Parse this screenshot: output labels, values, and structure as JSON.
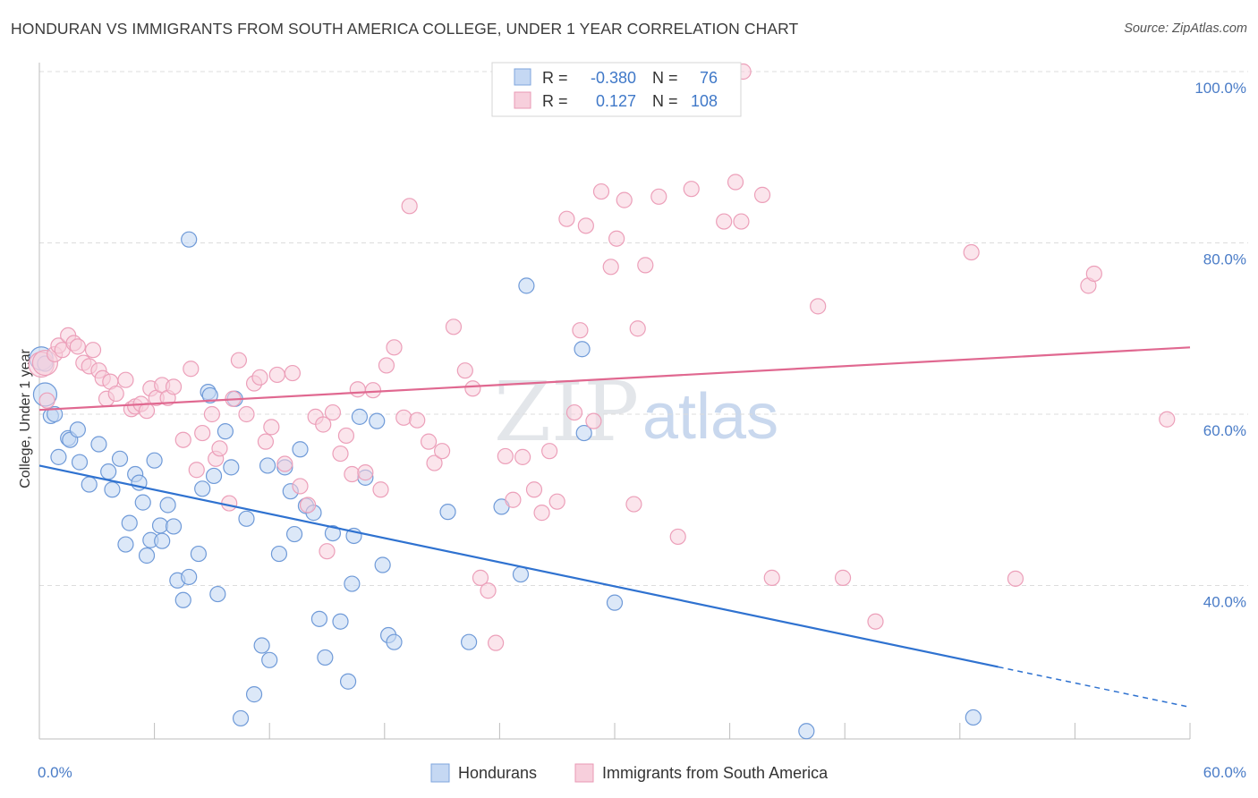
{
  "header": {
    "title": "HONDURAN VS IMMIGRANTS FROM SOUTH AMERICA COLLEGE, UNDER 1 YEAR CORRELATION CHART",
    "source": "Source: ZipAtlas.com"
  },
  "watermark": {
    "zip": "ZIP",
    "atlas": "atlas"
  },
  "chart_data": {
    "type": "scatter",
    "title": "HONDURAN VS IMMIGRANTS FROM SOUTH AMERICA COLLEGE, UNDER 1 YEAR CORRELATION CHART",
    "xlabel": "",
    "ylabel": "College, Under 1 year",
    "xlim": [
      0,
      60
    ],
    "ylim": [
      22,
      101
    ],
    "x_tick_labels": [
      "0.0%",
      "60.0%"
    ],
    "y_tick_labels": [
      "40.0%",
      "60.0%",
      "80.0%",
      "100.0%"
    ],
    "y_tick_values": [
      40,
      60,
      80,
      100
    ],
    "grid": true,
    "legend_position": "top-center",
    "colors": {
      "hondurans": "#8db4e6",
      "hondurans_line": "#2f72d0",
      "immigrants": "#f2a8c0",
      "immigrants_line": "#e06890",
      "tick_label": "#4a7cc7"
    },
    "legend": {
      "rows": [
        {
          "r_label": "R =",
          "r_value": "-0.380",
          "n_label": "N =",
          "n_value": "76"
        },
        {
          "r_label": "R =",
          "r_value": "0.127",
          "n_label": "N =",
          "n_value": "108"
        }
      ]
    },
    "series": [
      {
        "name": "Hondurans",
        "trend": {
          "x0": 0,
          "y0": 54,
          "x1": 50,
          "y1": 30.5,
          "dashed_to_x": 60,
          "dashed_to_y": 25.8
        },
        "points": [
          [
            0.1,
            66.5
          ],
          [
            0.3,
            62.3
          ],
          [
            0.6,
            59.8
          ],
          [
            0.8,
            60.0
          ],
          [
            1.0,
            55.0
          ],
          [
            1.5,
            57.2
          ],
          [
            1.6,
            57.0
          ],
          [
            2.0,
            58.2
          ],
          [
            2.1,
            54.4
          ],
          [
            2.6,
            51.8
          ],
          [
            3.1,
            56.5
          ],
          [
            3.6,
            53.3
          ],
          [
            3.8,
            51.2
          ],
          [
            4.2,
            54.8
          ],
          [
            4.5,
            44.8
          ],
          [
            4.7,
            47.3
          ],
          [
            5.0,
            53.0
          ],
          [
            5.2,
            52.0
          ],
          [
            5.4,
            49.7
          ],
          [
            5.6,
            43.5
          ],
          [
            5.8,
            45.3
          ],
          [
            6.0,
            54.6
          ],
          [
            6.3,
            47.0
          ],
          [
            6.4,
            45.2
          ],
          [
            6.7,
            49.4
          ],
          [
            7.0,
            46.9
          ],
          [
            7.2,
            40.6
          ],
          [
            7.5,
            38.3
          ],
          [
            7.8,
            41.0
          ],
          [
            8.3,
            43.7
          ],
          [
            8.5,
            51.3
          ],
          [
            8.8,
            62.6
          ],
          [
            9.1,
            52.8
          ],
          [
            9.3,
            39.0
          ],
          [
            9.7,
            58.0
          ],
          [
            10.0,
            53.8
          ],
          [
            10.2,
            61.8
          ],
          [
            10.5,
            24.5
          ],
          [
            10.8,
            47.8
          ],
          [
            11.2,
            27.3
          ],
          [
            11.6,
            33.0
          ],
          [
            11.9,
            54.0
          ],
          [
            12.0,
            31.3
          ],
          [
            12.5,
            43.7
          ],
          [
            12.8,
            53.8
          ],
          [
            13.1,
            51.0
          ],
          [
            13.3,
            46.0
          ],
          [
            13.6,
            55.9
          ],
          [
            13.9,
            49.3
          ],
          [
            14.3,
            48.5
          ],
          [
            14.6,
            36.1
          ],
          [
            14.9,
            31.6
          ],
          [
            15.3,
            46.1
          ],
          [
            15.7,
            35.8
          ],
          [
            16.1,
            28.8
          ],
          [
            16.3,
            40.2
          ],
          [
            16.4,
            45.8
          ],
          [
            16.7,
            59.7
          ],
          [
            17.0,
            52.6
          ],
          [
            17.6,
            59.2
          ],
          [
            17.9,
            42.4
          ],
          [
            18.2,
            34.2
          ],
          [
            18.5,
            33.4
          ],
          [
            7.8,
            80.4
          ],
          [
            21.3,
            48.6
          ],
          [
            22.4,
            33.4
          ],
          [
            24.1,
            49.2
          ],
          [
            25.1,
            41.3
          ],
          [
            25.4,
            75.0
          ],
          [
            28.3,
            67.6
          ],
          [
            28.4,
            57.8
          ],
          [
            30.0,
            38.0
          ],
          [
            40.0,
            23.0
          ],
          [
            48.7,
            24.6
          ],
          [
            8.9,
            62.2
          ],
          [
            0.3,
            65.9
          ]
        ]
      },
      {
        "name": "Immigrants from South America",
        "trend": {
          "x0": 0,
          "y0": 60.5,
          "x1": 60,
          "y1": 67.8
        },
        "points": [
          [
            0.1,
            65.8
          ],
          [
            0.3,
            66.0
          ],
          [
            0.4,
            61.6
          ],
          [
            0.8,
            67.0
          ],
          [
            1.0,
            68.0
          ],
          [
            1.2,
            67.5
          ],
          [
            1.5,
            69.2
          ],
          [
            1.8,
            68.3
          ],
          [
            2.0,
            67.9
          ],
          [
            2.3,
            66.0
          ],
          [
            2.6,
            65.6
          ],
          [
            2.8,
            67.5
          ],
          [
            3.1,
            65.1
          ],
          [
            3.3,
            64.2
          ],
          [
            3.5,
            61.8
          ],
          [
            3.7,
            63.8
          ],
          [
            4.0,
            62.4
          ],
          [
            4.5,
            64.0
          ],
          [
            4.8,
            60.6
          ],
          [
            5.0,
            60.9
          ],
          [
            5.3,
            61.2
          ],
          [
            5.6,
            60.4
          ],
          [
            5.8,
            63.0
          ],
          [
            6.1,
            61.9
          ],
          [
            6.4,
            63.4
          ],
          [
            6.7,
            61.9
          ],
          [
            7.0,
            63.2
          ],
          [
            7.5,
            57.0
          ],
          [
            7.9,
            65.3
          ],
          [
            8.2,
            53.5
          ],
          [
            8.5,
            57.8
          ],
          [
            9.0,
            60.0
          ],
          [
            9.2,
            54.8
          ],
          [
            9.4,
            56.0
          ],
          [
            9.9,
            49.6
          ],
          [
            10.1,
            61.8
          ],
          [
            10.4,
            66.3
          ],
          [
            10.8,
            60.0
          ],
          [
            11.2,
            63.6
          ],
          [
            11.5,
            64.3
          ],
          [
            11.8,
            56.8
          ],
          [
            12.1,
            58.5
          ],
          [
            12.4,
            64.6
          ],
          [
            12.8,
            54.2
          ],
          [
            13.2,
            64.8
          ],
          [
            13.6,
            51.6
          ],
          [
            14.0,
            49.4
          ],
          [
            14.4,
            59.7
          ],
          [
            14.8,
            58.8
          ],
          [
            15.0,
            44.0
          ],
          [
            15.3,
            60.2
          ],
          [
            15.7,
            55.4
          ],
          [
            16.0,
            57.5
          ],
          [
            16.3,
            53.0
          ],
          [
            16.6,
            62.9
          ],
          [
            17.0,
            53.2
          ],
          [
            17.4,
            62.8
          ],
          [
            17.8,
            51.2
          ],
          [
            18.1,
            65.7
          ],
          [
            18.5,
            67.8
          ],
          [
            19.0,
            59.6
          ],
          [
            19.3,
            84.3
          ],
          [
            19.7,
            59.3
          ],
          [
            20.3,
            56.8
          ],
          [
            20.6,
            54.3
          ],
          [
            21.0,
            55.7
          ],
          [
            21.6,
            70.2
          ],
          [
            22.2,
            65.1
          ],
          [
            22.6,
            63.0
          ],
          [
            23.0,
            40.9
          ],
          [
            23.4,
            39.4
          ],
          [
            23.8,
            33.3
          ],
          [
            24.3,
            55.1
          ],
          [
            24.7,
            50.0
          ],
          [
            25.2,
            55.0
          ],
          [
            25.8,
            51.2
          ],
          [
            26.2,
            48.5
          ],
          [
            26.6,
            55.7
          ],
          [
            27.0,
            49.8
          ],
          [
            27.5,
            82.8
          ],
          [
            27.9,
            60.2
          ],
          [
            28.2,
            69.8
          ],
          [
            28.5,
            82.0
          ],
          [
            28.9,
            59.2
          ],
          [
            29.3,
            86.0
          ],
          [
            29.8,
            77.2
          ],
          [
            30.1,
            80.5
          ],
          [
            30.5,
            85.0
          ],
          [
            31.0,
            49.5
          ],
          [
            31.2,
            70.0
          ],
          [
            31.6,
            77.4
          ],
          [
            32.3,
            85.4
          ],
          [
            33.3,
            45.7
          ],
          [
            34.0,
            86.3
          ],
          [
            35.7,
            82.5
          ],
          [
            36.3,
            87.1
          ],
          [
            36.6,
            82.5
          ],
          [
            37.7,
            85.6
          ],
          [
            38.2,
            40.9
          ],
          [
            40.6,
            72.6
          ],
          [
            41.9,
            40.9
          ],
          [
            43.6,
            35.8
          ],
          [
            48.6,
            78.9
          ],
          [
            50.9,
            40.8
          ],
          [
            54.7,
            75.0
          ],
          [
            55.0,
            76.4
          ],
          [
            58.8,
            59.4
          ],
          [
            36.7,
            100.0
          ]
        ]
      }
    ]
  },
  "bottom_legend": {
    "items": [
      {
        "label": "Hondurans"
      },
      {
        "label": "Immigrants from South America"
      }
    ]
  }
}
